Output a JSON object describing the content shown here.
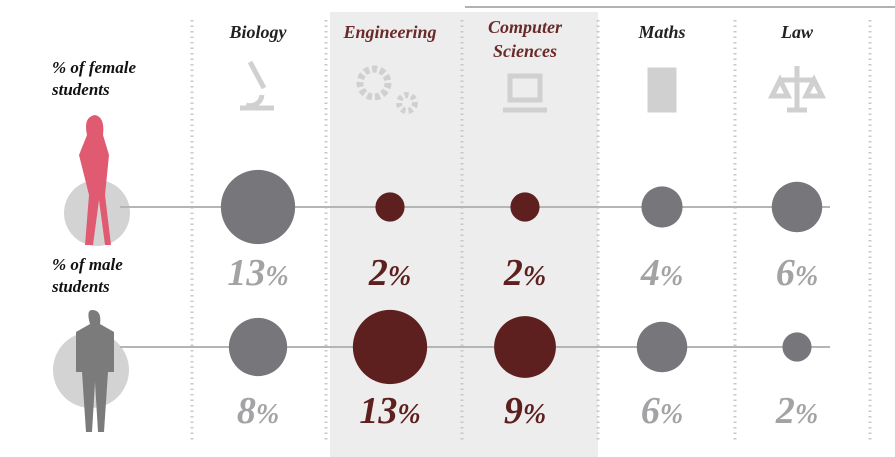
{
  "chart_data": {
    "type": "bubble-matrix",
    "categories": [
      "Biology",
      "Engineering",
      "Computer Sciences",
      "Maths",
      "Law"
    ],
    "series": [
      {
        "name": "% of female students",
        "values": [
          13,
          2,
          2,
          4,
          6
        ],
        "value_labels": [
          "13%",
          "2%",
          "2%",
          "4%",
          "6%"
        ],
        "colors": [
          "#77777b",
          "#5e1f1f",
          "#5e1f1f",
          "#77777b",
          "#77777b"
        ],
        "label_colors": [
          "#a3a3a6",
          "#5e1f1f",
          "#5e1f1f",
          "#a3a3a6",
          "#a3a3a6"
        ]
      },
      {
        "name": "% of male students",
        "values": [
          8,
          13,
          9,
          6,
          2
        ],
        "value_labels": [
          "8%",
          "13%",
          "9%",
          "6%",
          "2%"
        ],
        "colors": [
          "#77777b",
          "#5e1f1f",
          "#5e1f1f",
          "#77777b",
          "#77777b"
        ],
        "label_colors": [
          "#a3a3a6",
          "#5e1f1f",
          "#5e1f1f",
          "#a3a3a6",
          "#a3a3a6"
        ]
      }
    ]
  }
}
